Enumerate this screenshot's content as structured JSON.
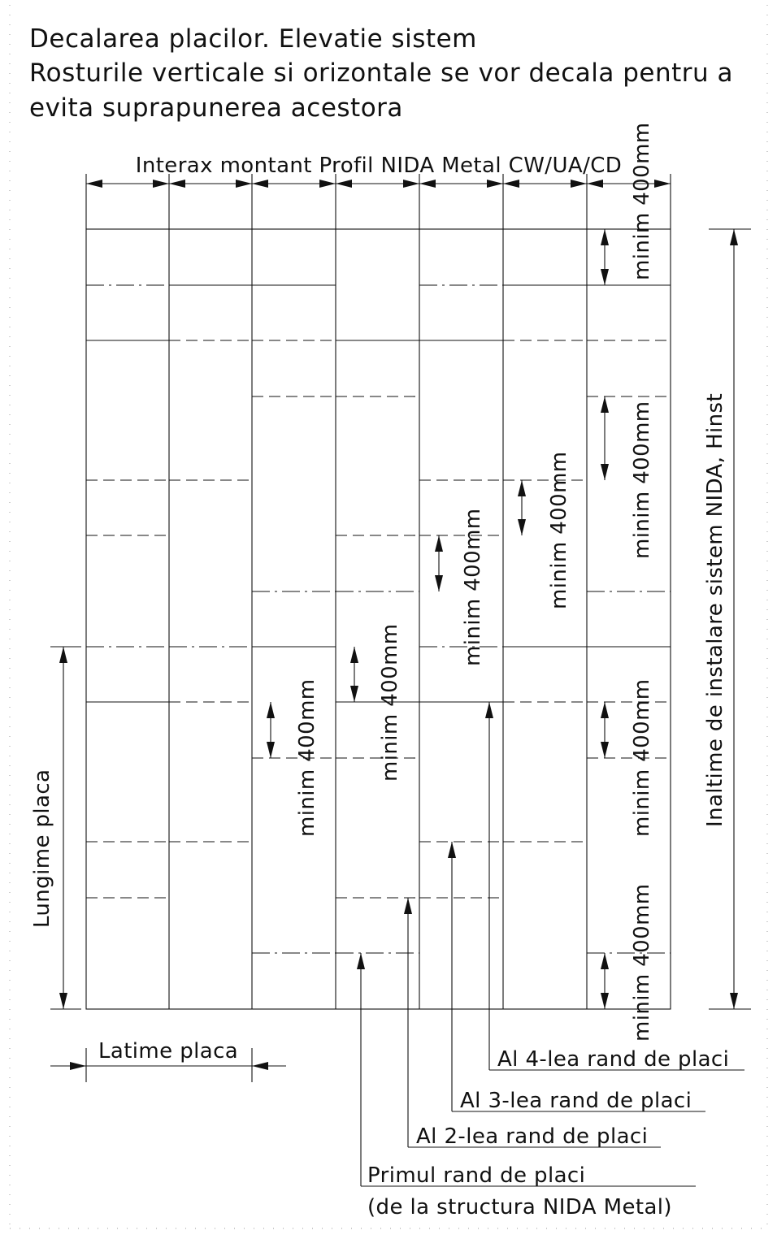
{
  "title": {
    "line1": "Decalarea placilor. Elevatie sistem",
    "line2": "Rosturile verticale si orizontale se vor decala pentru a",
    "line3": "evita suprapunerea acestora"
  },
  "labels": {
    "interax": "Interax montant Profil NIDA Metal CW/UA/CD",
    "height": "Inaltime de instalare sistem NIDA, Hinst",
    "length": "Lungime placa",
    "width": "Latime placa",
    "min": "minim 400mm"
  },
  "rows": {
    "row4": "Al 4-lea rand de placi",
    "row3": "Al 3-lea rand de placi",
    "row2": "Al 2-lea rand de placi",
    "row1a": "Primul rand de placi",
    "row1b": "(de la structura NIDA Metal)"
  }
}
